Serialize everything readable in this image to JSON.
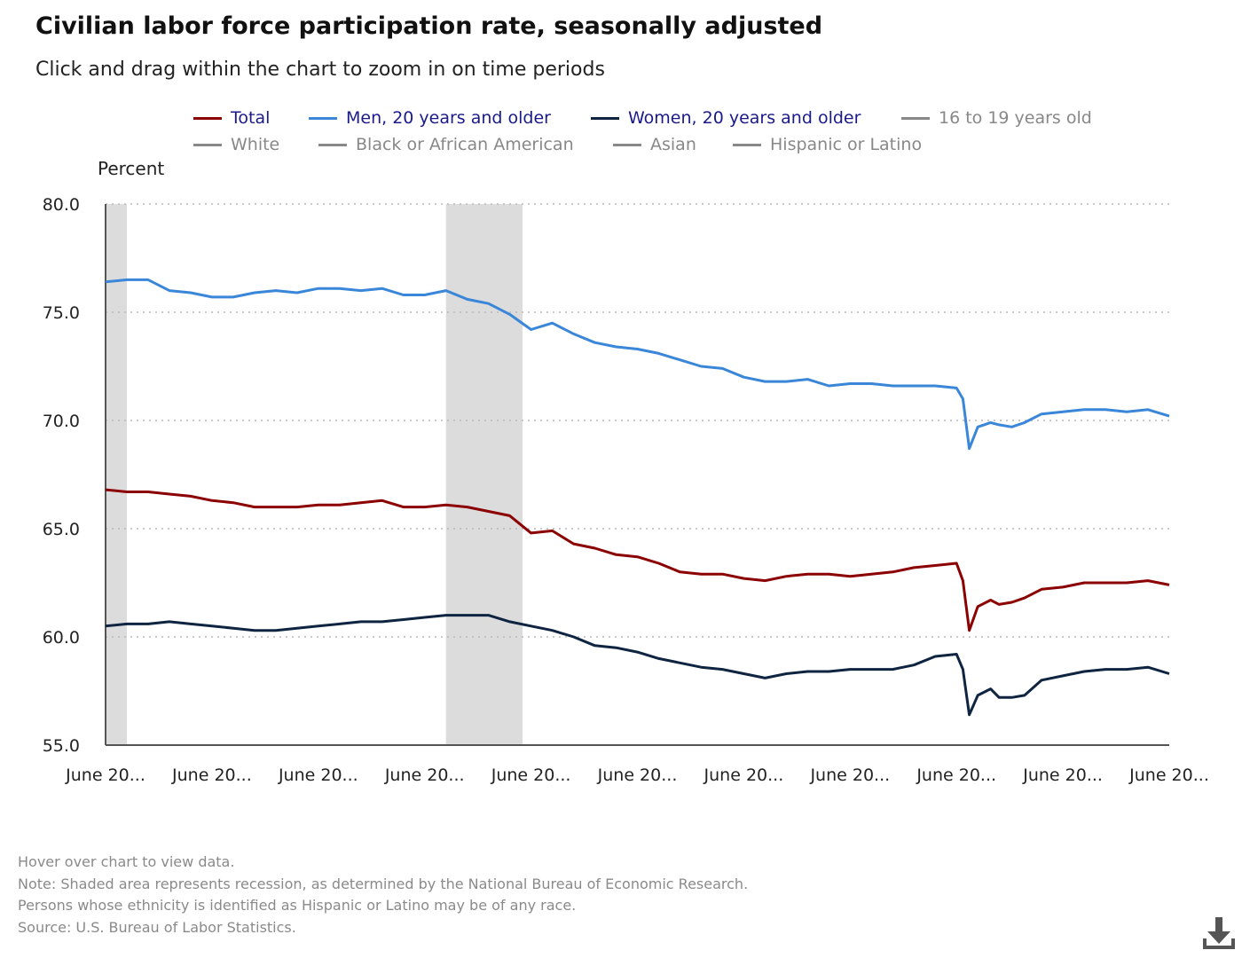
{
  "header": {
    "title": "Civilian labor force participation rate, seasonally adjusted",
    "subtitle": "Click and drag within the chart to zoom in on time periods"
  },
  "legend": {
    "items": [
      {
        "label": "Total",
        "color": "#8b0000",
        "active": true
      },
      {
        "label": "Men, 20 years and older",
        "color": "#3a86d8",
        "active": true
      },
      {
        "label": "Women, 20 years and older",
        "color": "#0e2440",
        "active": true
      },
      {
        "label": "16 to 19 years old",
        "color": "#888888",
        "active": false
      },
      {
        "label": "White",
        "color": "#888888",
        "active": false
      },
      {
        "label": "Black or African American",
        "color": "#888888",
        "active": false
      },
      {
        "label": "Asian",
        "color": "#888888",
        "active": false
      },
      {
        "label": "Hispanic or Latino",
        "color": "#888888",
        "active": false
      }
    ]
  },
  "notes": [
    "Hover over chart to view data.",
    "Note: Shaded area represents recession, as determined by the National Bureau of Economic Research.",
    "Persons whose ethnicity is identified as Hispanic or Latino may be of any race.",
    "Source: U.S. Bureau of Labor Statistics."
  ],
  "download_icon": "download-icon",
  "chart_data": {
    "type": "line",
    "title": "Civilian labor force participation rate, seasonally adjusted",
    "ylabel": "Percent",
    "xlabel": "",
    "ylim": [
      55.0,
      80.0
    ],
    "yticks": [
      "55.0",
      "60.0",
      "65.0",
      "70.0",
      "75.0",
      "80.0"
    ],
    "xticks": [
      "June 20...",
      "June 20...",
      "June 20...",
      "June 20...",
      "June 20...",
      "June 20...",
      "June 20...",
      "June 20...",
      "June 20...",
      "June 20...",
      "June 20..."
    ],
    "x_range_years": [
      2000.0,
      2025.0
    ],
    "grid": "horizontal dotted",
    "legend_position": "top",
    "recessions": [
      [
        2000.0,
        2000.5
      ],
      [
        2008.0,
        2009.8
      ]
    ],
    "series": [
      {
        "name": "Total",
        "color": "#8b0000",
        "x": [
          2000.0,
          2000.5,
          2001.0,
          2001.5,
          2002.0,
          2002.5,
          2003.0,
          2003.5,
          2004.0,
          2004.5,
          2005.0,
          2005.5,
          2006.0,
          2006.5,
          2007.0,
          2007.5,
          2008.0,
          2008.5,
          2009.0,
          2009.5,
          2010.0,
          2010.5,
          2011.0,
          2011.5,
          2012.0,
          2012.5,
          2013.0,
          2013.5,
          2014.0,
          2014.5,
          2015.0,
          2015.5,
          2016.0,
          2016.5,
          2017.0,
          2017.5,
          2018.0,
          2018.5,
          2019.0,
          2019.5,
          2020.0,
          2020.15,
          2020.3,
          2020.5,
          2020.8,
          2021.0,
          2021.3,
          2021.6,
          2022.0,
          2022.5,
          2023.0,
          2023.5,
          2024.0,
          2024.5,
          2025.0
        ],
        "y": [
          66.8,
          66.7,
          66.7,
          66.6,
          66.5,
          66.3,
          66.2,
          66.0,
          66.0,
          66.0,
          66.1,
          66.1,
          66.2,
          66.3,
          66.0,
          66.0,
          66.1,
          66.0,
          65.8,
          65.6,
          64.8,
          64.9,
          64.3,
          64.1,
          63.8,
          63.7,
          63.4,
          63.0,
          62.9,
          62.9,
          62.7,
          62.6,
          62.8,
          62.9,
          62.9,
          62.8,
          62.9,
          63.0,
          63.2,
          63.3,
          63.4,
          62.6,
          60.3,
          61.4,
          61.7,
          61.5,
          61.6,
          61.8,
          62.2,
          62.3,
          62.5,
          62.5,
          62.5,
          62.6,
          62.4
        ]
      },
      {
        "name": "Men, 20 years and older",
        "color": "#3a86d8",
        "x": [
          2000.0,
          2000.5,
          2001.0,
          2001.5,
          2002.0,
          2002.5,
          2003.0,
          2003.5,
          2004.0,
          2004.5,
          2005.0,
          2005.5,
          2006.0,
          2006.5,
          2007.0,
          2007.5,
          2008.0,
          2008.5,
          2009.0,
          2009.5,
          2010.0,
          2010.5,
          2011.0,
          2011.5,
          2012.0,
          2012.5,
          2013.0,
          2013.5,
          2014.0,
          2014.5,
          2015.0,
          2015.5,
          2016.0,
          2016.5,
          2017.0,
          2017.5,
          2018.0,
          2018.5,
          2019.0,
          2019.5,
          2020.0,
          2020.15,
          2020.3,
          2020.5,
          2020.8,
          2021.0,
          2021.3,
          2021.6,
          2022.0,
          2022.5,
          2023.0,
          2023.5,
          2024.0,
          2024.5,
          2025.0
        ],
        "y": [
          76.4,
          76.5,
          76.5,
          76.0,
          75.9,
          75.7,
          75.7,
          75.9,
          76.0,
          75.9,
          76.1,
          76.1,
          76.0,
          76.1,
          75.8,
          75.8,
          76.0,
          75.6,
          75.4,
          74.9,
          74.2,
          74.5,
          74.0,
          73.6,
          73.4,
          73.3,
          73.1,
          72.8,
          72.5,
          72.4,
          72.0,
          71.8,
          71.8,
          71.9,
          71.6,
          71.7,
          71.7,
          71.6,
          71.6,
          71.6,
          71.5,
          71.0,
          68.7,
          69.7,
          69.9,
          69.8,
          69.7,
          69.9,
          70.3,
          70.4,
          70.5,
          70.5,
          70.4,
          70.5,
          70.2
        ]
      },
      {
        "name": "Women, 20 years and older",
        "color": "#0e2440",
        "x": [
          2000.0,
          2000.5,
          2001.0,
          2001.5,
          2002.0,
          2002.5,
          2003.0,
          2003.5,
          2004.0,
          2004.5,
          2005.0,
          2005.5,
          2006.0,
          2006.5,
          2007.0,
          2007.5,
          2008.0,
          2008.5,
          2009.0,
          2009.5,
          2010.0,
          2010.5,
          2011.0,
          2011.5,
          2012.0,
          2012.5,
          2013.0,
          2013.5,
          2014.0,
          2014.5,
          2015.0,
          2015.5,
          2016.0,
          2016.5,
          2017.0,
          2017.5,
          2018.0,
          2018.5,
          2019.0,
          2019.5,
          2020.0,
          2020.15,
          2020.3,
          2020.5,
          2020.8,
          2021.0,
          2021.3,
          2021.6,
          2022.0,
          2022.5,
          2023.0,
          2023.5,
          2024.0,
          2024.5,
          2025.0
        ],
        "y": [
          60.5,
          60.6,
          60.6,
          60.7,
          60.6,
          60.5,
          60.4,
          60.3,
          60.3,
          60.4,
          60.5,
          60.6,
          60.7,
          60.7,
          60.8,
          60.9,
          61.0,
          61.0,
          61.0,
          60.7,
          60.5,
          60.3,
          60.0,
          59.6,
          59.5,
          59.3,
          59.0,
          58.8,
          58.6,
          58.5,
          58.3,
          58.1,
          58.3,
          58.4,
          58.4,
          58.5,
          58.5,
          58.5,
          58.7,
          59.1,
          59.2,
          58.5,
          56.4,
          57.3,
          57.6,
          57.2,
          57.2,
          57.3,
          58.0,
          58.2,
          58.4,
          58.5,
          58.5,
          58.6,
          58.3
        ]
      }
    ]
  }
}
